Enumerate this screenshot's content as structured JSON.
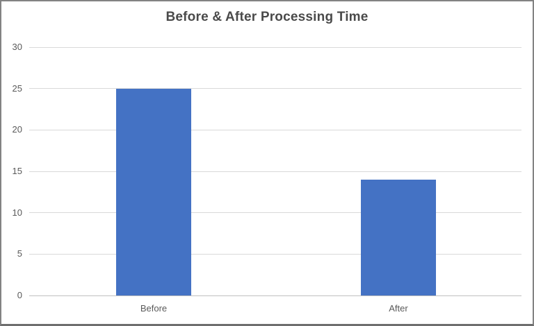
{
  "chart_data": {
    "type": "bar",
    "title": "Before & After Processing Time",
    "categories": [
      "Before",
      "After"
    ],
    "values": [
      25,
      14
    ],
    "xlabel": "",
    "ylabel": "",
    "ylim": [
      0,
      30
    ],
    "yticks": [
      0,
      5,
      10,
      15,
      20,
      25,
      30
    ],
    "grid": true,
    "legend": false,
    "colors": {
      "bar": "#4472C4",
      "gridline": "#D9D9D9",
      "axis_line": "#BFBFBF",
      "tick_text": "#595959",
      "title_text": "#4a4a4a",
      "frame_border": "#828282"
    }
  }
}
